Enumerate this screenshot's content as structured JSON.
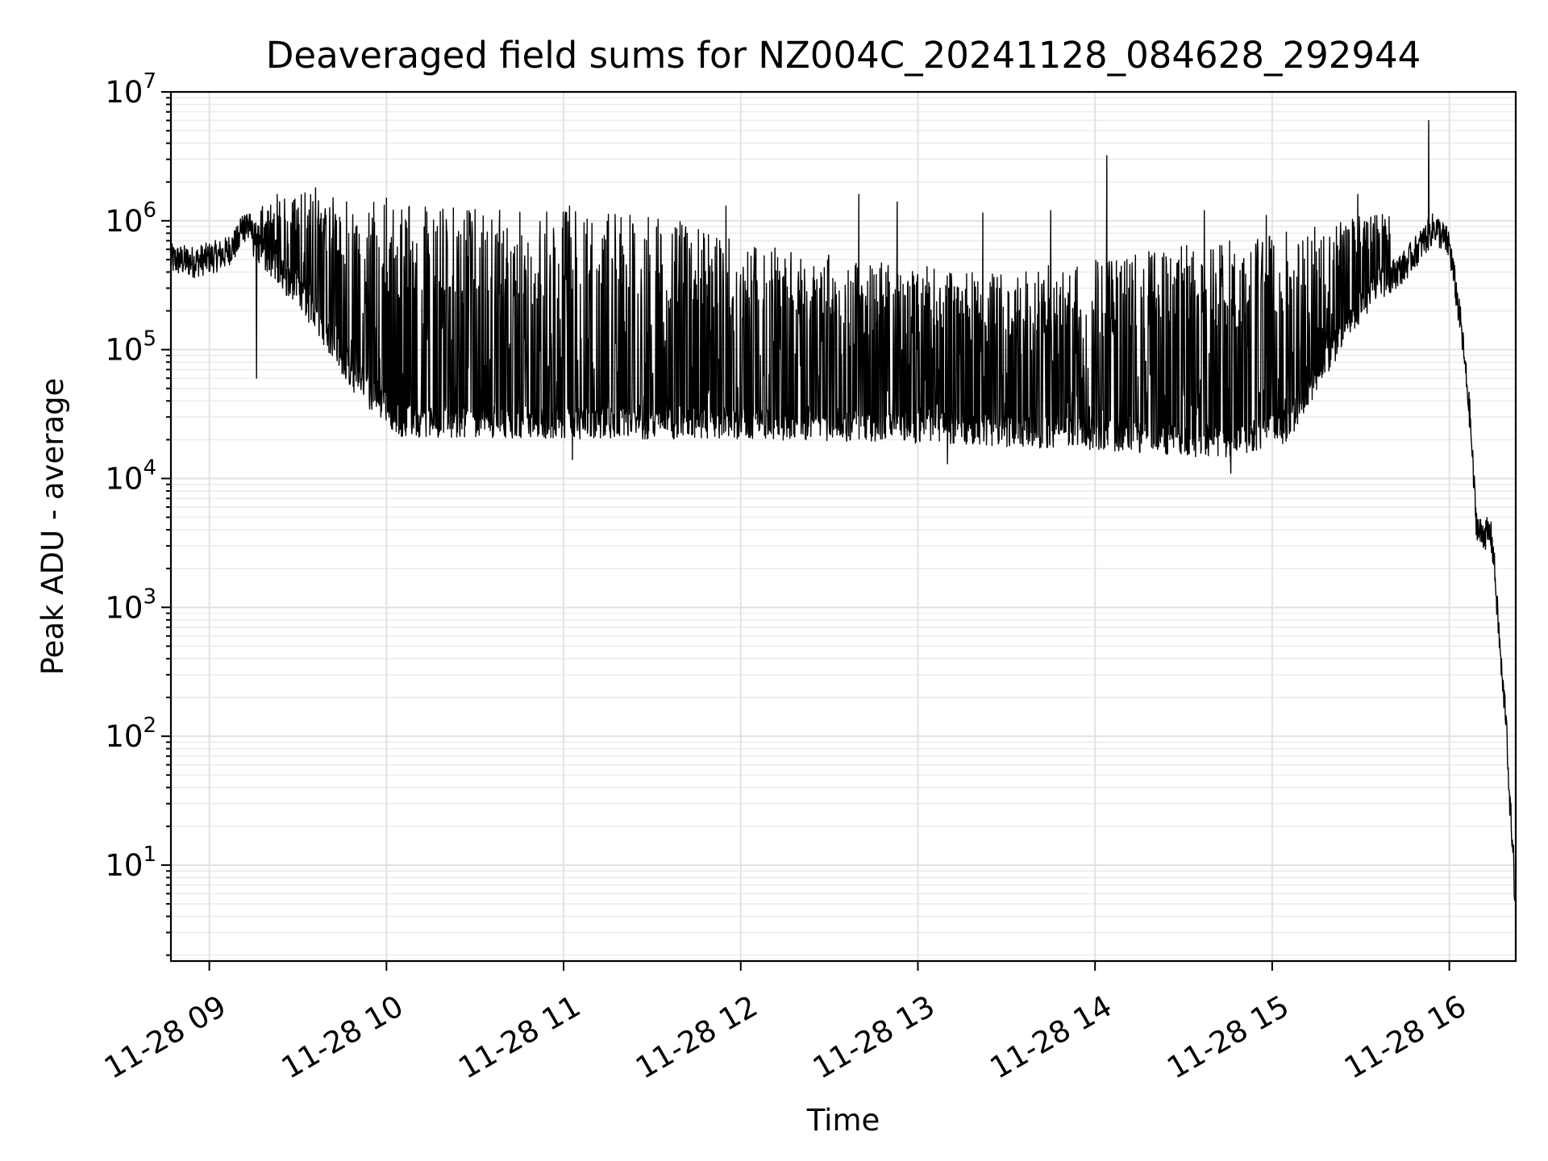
{
  "chart_data": {
    "type": "line",
    "title": "Deaveraged field sums for NZ004C_20241128_084628_292944",
    "xlabel": "Time",
    "ylabel": "Peak ADU - average",
    "x_scale": "time",
    "y_scale": "log",
    "xlim": [
      "2024-11-28T08:47:00",
      "2024-11-28T16:22:30"
    ],
    "ylim": [
      1.8,
      10000000
    ],
    "grid": "major+minor",
    "legend": "none",
    "line_color": "#000000",
    "x_ticks": [
      {
        "value": "2024-11-28T09:00:00",
        "label": "11-28 09"
      },
      {
        "value": "2024-11-28T10:00:00",
        "label": "11-28 10"
      },
      {
        "value": "2024-11-28T11:00:00",
        "label": "11-28 11"
      },
      {
        "value": "2024-11-28T12:00:00",
        "label": "11-28 12"
      },
      {
        "value": "2024-11-28T13:00:00",
        "label": "11-28 13"
      },
      {
        "value": "2024-11-28T14:00:00",
        "label": "11-28 14"
      },
      {
        "value": "2024-11-28T15:00:00",
        "label": "11-28 15"
      },
      {
        "value": "2024-11-28T16:00:00",
        "label": "11-28 16"
      }
    ],
    "y_ticks": [
      {
        "value": 10,
        "base": "10",
        "exp": "1"
      },
      {
        "value": 100,
        "base": "10",
        "exp": "2"
      },
      {
        "value": 1000,
        "base": "10",
        "exp": "3"
      },
      {
        "value": 10000,
        "base": "10",
        "exp": "4"
      },
      {
        "value": 100000,
        "base": "10",
        "exp": "5"
      },
      {
        "value": 1000000,
        "base": "10",
        "exp": "6"
      },
      {
        "value": 10000000,
        "base": "10",
        "exp": "7"
      }
    ],
    "series": [
      {
        "baseline": [
          [
            "2024-11-28T08:47:00",
            500000
          ],
          [
            "2024-11-28T08:55:00",
            480000
          ],
          [
            "2024-11-28T09:05:00",
            550000
          ],
          [
            "2024-11-28T09:12:00",
            780000
          ],
          [
            "2024-11-28T09:20:00",
            500000
          ],
          [
            "2024-11-28T09:30:00",
            280000
          ],
          [
            "2024-11-28T09:40:00",
            130000
          ],
          [
            "2024-11-28T09:50:00",
            55000
          ],
          [
            "2024-11-28T10:05:00",
            28000
          ],
          [
            "2024-11-28T11:00:00",
            27000
          ],
          [
            "2024-11-28T12:00:00",
            27000
          ],
          [
            "2024-11-28T13:00:00",
            25000
          ],
          [
            "2024-11-28T14:00:00",
            22000
          ],
          [
            "2024-11-28T14:45:00",
            19000
          ],
          [
            "2024-11-28T15:05:00",
            25000
          ],
          [
            "2024-11-28T15:15:00",
            60000
          ],
          [
            "2024-11-28T15:25:00",
            150000
          ],
          [
            "2024-11-28T15:35:00",
            300000
          ],
          [
            "2024-11-28T15:45:00",
            450000
          ],
          [
            "2024-11-28T15:55:00",
            900000
          ],
          [
            "2024-11-28T16:00:00",
            650000
          ],
          [
            "2024-11-28T16:04:00",
            150000
          ],
          [
            "2024-11-28T16:07:00",
            30000
          ],
          [
            "2024-11-28T16:09:00",
            5000
          ],
          [
            "2024-11-28T16:10:00",
            3800
          ],
          [
            "2024-11-28T16:14:00",
            3700
          ],
          [
            "2024-11-28T16:15:00",
            2500
          ],
          [
            "2024-11-28T16:18:00",
            250
          ],
          [
            "2024-11-28T16:19:30",
            130
          ],
          [
            "2024-11-28T16:20:00",
            40
          ],
          [
            "2024-11-28T16:21:30",
            15
          ],
          [
            "2024-11-28T16:22:30",
            3.8
          ]
        ],
        "peaks": [
          [
            "2024-11-28T09:07:30",
            1000000
          ],
          [
            "2024-11-28T09:24:00",
            1500000
          ],
          [
            "2024-11-28T09:38:00",
            1800000
          ],
          [
            "2024-11-28T09:53:00",
            1500000
          ],
          [
            "2024-11-28T10:08:00",
            1300000
          ],
          [
            "2024-11-28T10:30:00",
            1250000
          ],
          [
            "2024-11-28T10:55:00",
            1250000
          ],
          [
            "2024-11-28T11:20:00",
            1200000
          ],
          [
            "2024-11-28T11:40:00",
            1000000
          ],
          [
            "2024-11-28T12:00:00",
            700000
          ],
          [
            "2024-11-28T12:20:00",
            600000
          ],
          [
            "2024-11-28T12:40:00",
            500000
          ],
          [
            "2024-11-28T13:00:00",
            450000
          ],
          [
            "2024-11-28T13:20:00",
            400000
          ],
          [
            "2024-11-28T13:40:00",
            450000
          ],
          [
            "2024-11-28T14:00:00",
            500000
          ],
          [
            "2024-11-28T14:20:00",
            600000
          ],
          [
            "2024-11-28T14:40:00",
            700000
          ],
          [
            "2024-11-28T15:00:00",
            800000
          ],
          [
            "2024-11-28T15:20:00",
            1000000
          ],
          [
            "2024-11-28T15:45:00",
            1300000
          ]
        ],
        "spikes": [
          [
            "2024-11-28T09:13:00",
            1000000
          ],
          [
            "2024-11-28T09:23:00",
            1600000
          ],
          [
            "2024-11-28T09:36:00",
            1800000
          ],
          [
            "2024-11-28T10:00:00",
            1500000
          ],
          [
            "2024-11-28T11:02:00",
            1300000
          ],
          [
            "2024-11-28T11:55:00",
            1300000
          ],
          [
            "2024-11-28T12:40:00",
            1600000
          ],
          [
            "2024-11-28T12:53:00",
            1400000
          ],
          [
            "2024-11-28T13:22:00",
            1150000
          ],
          [
            "2024-11-28T13:45:00",
            1200000
          ],
          [
            "2024-11-28T14:04:00",
            3200000
          ],
          [
            "2024-11-28T14:37:00",
            1200000
          ],
          [
            "2024-11-28T14:58:00",
            1100000
          ],
          [
            "2024-11-28T15:29:00",
            1600000
          ],
          [
            "2024-11-28T15:53:00",
            6000000
          ]
        ],
        "dips": [
          [
            "2024-11-28T09:16:00",
            60000
          ],
          [
            "2024-11-28T11:03:00",
            14000
          ],
          [
            "2024-11-28T13:10:00",
            13000
          ],
          [
            "2024-11-28T14:46:00",
            11000
          ]
        ]
      }
    ]
  }
}
